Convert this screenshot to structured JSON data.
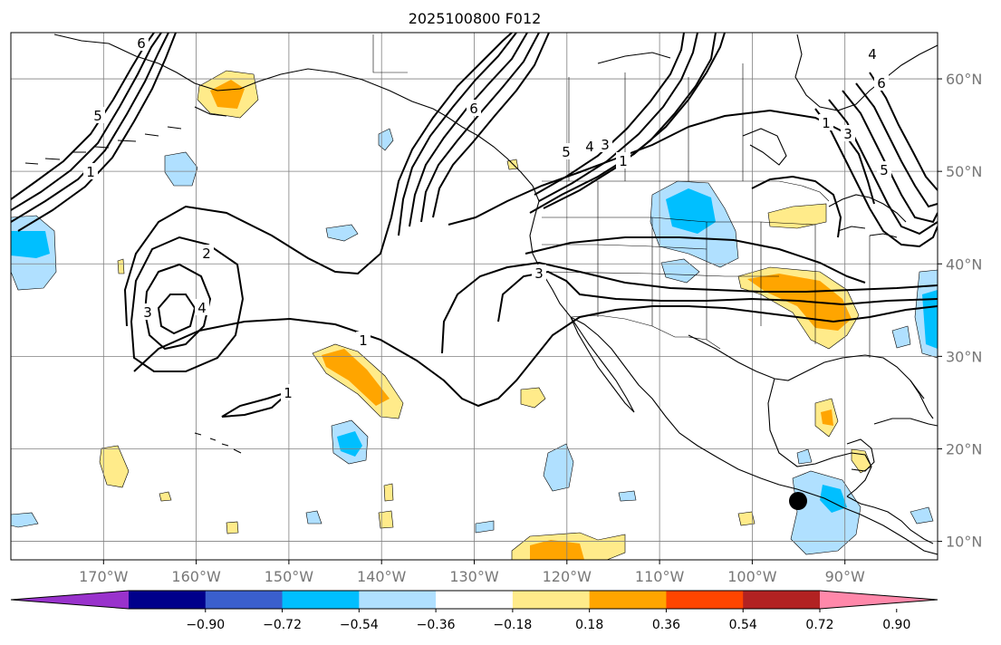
{
  "title": "2025100800 F012",
  "map": {
    "lon_range": [
      -180,
      -80
    ],
    "lat_range": [
      8,
      65
    ],
    "lon_ticks": [
      {
        "lon": -170,
        "label": "170°W"
      },
      {
        "lon": -160,
        "label": "160°W"
      },
      {
        "lon": -150,
        "label": "150°W"
      },
      {
        "lon": -140,
        "label": "140°W"
      },
      {
        "lon": -130,
        "label": "130°W"
      },
      {
        "lon": -120,
        "label": "120°W"
      },
      {
        "lon": -110,
        "label": "110°W"
      },
      {
        "lon": -100,
        "label": "100°W"
      },
      {
        "lon": -90,
        "label": "90°W"
      }
    ],
    "lat_ticks": [
      {
        "lat": 10,
        "label": "10°N"
      },
      {
        "lat": 20,
        "label": "20°N"
      },
      {
        "lat": 30,
        "label": "30°N"
      },
      {
        "lat": 40,
        "label": "40°N"
      },
      {
        "lat": 50,
        "label": "50°N"
      },
      {
        "lat": 60,
        "label": "60°N"
      }
    ],
    "contour_labels": [
      "1",
      "2",
      "3",
      "4",
      "5",
      "6"
    ],
    "colors": {
      "coast": "#000000",
      "grid": "#808080",
      "contour": "#000000",
      "marker": "#000000"
    }
  },
  "colorbar": {
    "colors": [
      "#9932cc",
      "#00008b",
      "#3a5fcd",
      "#00bfff",
      "#b0e0ff",
      "#ffffff",
      "#ffeb8a",
      "#ffa500",
      "#ff4500",
      "#b22222",
      "#ff88aa"
    ],
    "tick_labels": [
      "−0.90",
      "−0.72",
      "−0.54",
      "−0.36",
      "−0.18",
      "0.18",
      "0.36",
      "0.54",
      "0.72",
      "0.90"
    ]
  }
}
